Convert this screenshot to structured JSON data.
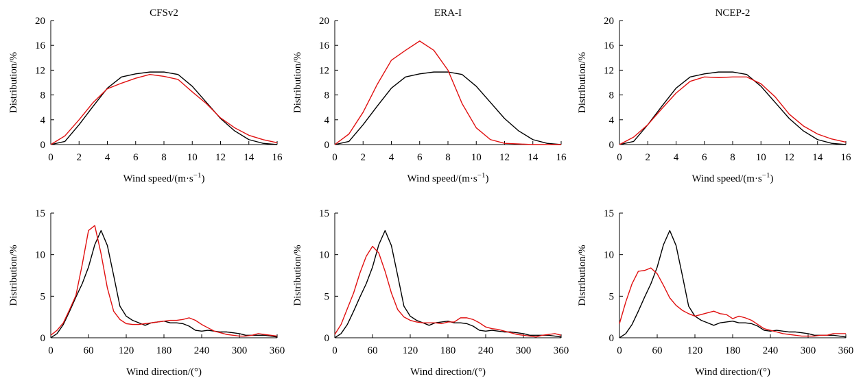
{
  "chart_data": [
    {
      "type": "line",
      "title": "CFSv2",
      "xlabel": "Wind speed/(m·s",
      "xlabel_sup": "−1",
      "xlabel_tail": ")",
      "ylabel": "Distribution/%",
      "xlim": [
        0,
        16
      ],
      "ylim": [
        0,
        20
      ],
      "xticks": [
        0,
        2,
        4,
        6,
        8,
        10,
        12,
        14,
        16
      ],
      "yticks": [
        0,
        4,
        8,
        12,
        16,
        20
      ],
      "series": [
        {
          "color": "#000000",
          "x": [
            0,
            1,
            2,
            3,
            4,
            5,
            6,
            7,
            8,
            9,
            10,
            11,
            12,
            13,
            14,
            15,
            16
          ],
          "y": [
            0,
            0.5,
            3.2,
            6.2,
            9.1,
            10.9,
            11.4,
            11.7,
            11.7,
            11.3,
            9.4,
            6.8,
            4.2,
            2.2,
            0.8,
            0.2,
            0
          ]
        },
        {
          "color": "#e01010",
          "x": [
            0,
            1,
            2,
            3,
            4,
            5,
            6,
            7,
            8,
            9,
            10,
            11,
            12,
            13,
            14,
            15,
            16
          ],
          "y": [
            0,
            1.4,
            4,
            6.8,
            9,
            9.9,
            10.7,
            11.3,
            11,
            10.5,
            8.5,
            6.6,
            4.3,
            2.7,
            1.5,
            0.8,
            0.3
          ]
        }
      ]
    },
    {
      "type": "line",
      "title": "ERA-I",
      "xlabel": "Wind speed/(m·s",
      "xlabel_sup": "−1",
      "xlabel_tail": ")",
      "ylabel": "Distribution/%",
      "xlim": [
        0,
        16
      ],
      "ylim": [
        0,
        20
      ],
      "xticks": [
        0,
        2,
        4,
        6,
        8,
        10,
        12,
        14,
        16
      ],
      "yticks": [
        0,
        4,
        8,
        12,
        16,
        20
      ],
      "series": [
        {
          "color": "#000000",
          "x": [
            0,
            1,
            2,
            3,
            4,
            5,
            6,
            7,
            8,
            9,
            10,
            11,
            12,
            13,
            14,
            15,
            16
          ],
          "y": [
            0,
            0.5,
            3.2,
            6.2,
            9.1,
            10.9,
            11.4,
            11.7,
            11.7,
            11.3,
            9.4,
            6.8,
            4.2,
            2.2,
            0.8,
            0.2,
            0
          ]
        },
        {
          "color": "#e01010",
          "x": [
            0,
            1,
            2,
            3,
            4,
            5,
            6,
            7,
            8,
            9,
            10,
            11,
            12,
            13,
            14,
            15,
            16
          ],
          "y": [
            0,
            1.7,
            5.2,
            9.7,
            13.6,
            15.2,
            16.7,
            15.2,
            12,
            6.6,
            2.7,
            0.8,
            0.2,
            0.1,
            0,
            0,
            0
          ]
        }
      ]
    },
    {
      "type": "line",
      "title": "NCEP-2",
      "xlabel": "Wind speed/(m·s",
      "xlabel_sup": "−1",
      "xlabel_tail": ")",
      "ylabel": "Distribution/%",
      "xlim": [
        0,
        16
      ],
      "ylim": [
        0,
        20
      ],
      "xticks": [
        0,
        2,
        4,
        6,
        8,
        10,
        12,
        14,
        16
      ],
      "yticks": [
        0,
        4,
        8,
        12,
        16,
        20
      ],
      "series": [
        {
          "color": "#000000",
          "x": [
            0,
            1,
            2,
            3,
            4,
            5,
            6,
            7,
            8,
            9,
            10,
            11,
            12,
            13,
            14,
            15,
            16
          ],
          "y": [
            0,
            0.5,
            3.2,
            6.2,
            9.1,
            10.9,
            11.4,
            11.7,
            11.7,
            11.3,
            9.4,
            6.8,
            4.2,
            2.2,
            0.8,
            0.2,
            0
          ]
        },
        {
          "color": "#e01010",
          "x": [
            0,
            1,
            2,
            3,
            4,
            5,
            6,
            7,
            8,
            9,
            10,
            11,
            12,
            13,
            14,
            15,
            16
          ],
          "y": [
            0,
            1.2,
            3.2,
            5.8,
            8.3,
            10.2,
            10.9,
            10.8,
            10.9,
            10.9,
            9.8,
            7.7,
            4.9,
            3,
            1.7,
            0.9,
            0.4
          ]
        }
      ]
    },
    {
      "type": "line",
      "title": "",
      "xlabel": "Wind direction/(°)",
      "ylabel": "Distribution/%",
      "xlim": [
        0,
        360
      ],
      "ylim": [
        0,
        15
      ],
      "xticks": [
        0,
        60,
        120,
        180,
        240,
        300,
        360
      ],
      "yticks": [
        0,
        5,
        10,
        15
      ],
      "series": [
        {
          "color": "#000000",
          "x": [
            0,
            10,
            20,
            30,
            40,
            50,
            60,
            70,
            80,
            90,
            100,
            110,
            120,
            130,
            140,
            150,
            160,
            170,
            180,
            190,
            200,
            210,
            220,
            230,
            240,
            250,
            260,
            270,
            280,
            290,
            300,
            310,
            320,
            330,
            340,
            350,
            360
          ],
          "y": [
            0,
            0.5,
            1.6,
            3.2,
            4.9,
            6.5,
            8.5,
            11.2,
            12.9,
            11.1,
            7.5,
            3.8,
            2.6,
            2.1,
            1.8,
            1.5,
            1.8,
            1.9,
            2,
            1.8,
            1.8,
            1.7,
            1.4,
            0.9,
            0.8,
            0.9,
            0.8,
            0.7,
            0.7,
            0.6,
            0.5,
            0.3,
            0.3,
            0.3,
            0.3,
            0.2,
            0.1
          ]
        },
        {
          "color": "#e01010",
          "x": [
            0,
            10,
            20,
            30,
            40,
            50,
            60,
            70,
            80,
            90,
            100,
            110,
            120,
            130,
            140,
            150,
            160,
            170,
            180,
            190,
            200,
            210,
            220,
            230,
            240,
            250,
            260,
            270,
            280,
            290,
            300,
            310,
            320,
            330,
            340,
            350,
            360
          ],
          "y": [
            0.3,
            0.9,
            1.8,
            3.4,
            5.1,
            8.8,
            12.9,
            13.5,
            10.1,
            6,
            3.2,
            2.2,
            1.7,
            1.6,
            1.6,
            1.7,
            1.8,
            1.9,
            2,
            2.1,
            2.1,
            2.2,
            2.4,
            2.1,
            1.6,
            1.2,
            0.8,
            0.6,
            0.4,
            0.3,
            0.2,
            0.2,
            0.3,
            0.5,
            0.4,
            0.3,
            0.2
          ]
        }
      ]
    },
    {
      "type": "line",
      "title": "",
      "xlabel": "Wind direction/(°)",
      "ylabel": "Distribution/%",
      "xlim": [
        0,
        360
      ],
      "ylim": [
        0,
        15
      ],
      "xticks": [
        0,
        60,
        120,
        180,
        240,
        300,
        360
      ],
      "yticks": [
        0,
        5,
        10,
        15
      ],
      "series": [
        {
          "color": "#000000",
          "x": [
            0,
            10,
            20,
            30,
            40,
            50,
            60,
            70,
            80,
            90,
            100,
            110,
            120,
            130,
            140,
            150,
            160,
            170,
            180,
            190,
            200,
            210,
            220,
            230,
            240,
            250,
            260,
            270,
            280,
            290,
            300,
            310,
            320,
            330,
            340,
            350,
            360
          ],
          "y": [
            0,
            0.5,
            1.6,
            3.2,
            4.9,
            6.5,
            8.5,
            11.2,
            12.9,
            11.1,
            7.5,
            3.8,
            2.6,
            2.1,
            1.8,
            1.5,
            1.8,
            1.9,
            2,
            1.8,
            1.8,
            1.7,
            1.4,
            0.9,
            0.8,
            0.9,
            0.8,
            0.7,
            0.7,
            0.6,
            0.5,
            0.3,
            0.3,
            0.3,
            0.3,
            0.2,
            0.1
          ]
        },
        {
          "color": "#e01010",
          "x": [
            0,
            10,
            20,
            30,
            40,
            50,
            60,
            70,
            80,
            90,
            100,
            110,
            120,
            130,
            140,
            150,
            160,
            170,
            180,
            190,
            200,
            210,
            220,
            230,
            240,
            250,
            260,
            270,
            280,
            290,
            300,
            310,
            320,
            330,
            340,
            350,
            360
          ],
          "y": [
            0.4,
            1.6,
            3.5,
            5.4,
            7.8,
            9.8,
            11,
            10.2,
            8,
            5.4,
            3.4,
            2.5,
            2.1,
            1.9,
            1.8,
            1.8,
            1.8,
            1.7,
            1.9,
            1.9,
            2.4,
            2.4,
            2.2,
            1.8,
            1.3,
            1.1,
            1,
            0.8,
            0.6,
            0.4,
            0.3,
            0.2,
            0.1,
            0.3,
            0.4,
            0.5,
            0.3
          ]
        }
      ]
    },
    {
      "type": "line",
      "title": "",
      "xlabel": "Wind direction/(°)",
      "ylabel": "Distribution/%",
      "xlim": [
        0,
        360
      ],
      "ylim": [
        0,
        15
      ],
      "xticks": [
        0,
        60,
        120,
        180,
        240,
        300,
        360
      ],
      "yticks": [
        0,
        5,
        10,
        15
      ],
      "series": [
        {
          "color": "#000000",
          "x": [
            0,
            10,
            20,
            30,
            40,
            50,
            60,
            70,
            80,
            90,
            100,
            110,
            120,
            130,
            140,
            150,
            160,
            170,
            180,
            190,
            200,
            210,
            220,
            230,
            240,
            250,
            260,
            270,
            280,
            290,
            300,
            310,
            320,
            330,
            340,
            350,
            360
          ],
          "y": [
            0,
            0.5,
            1.6,
            3.2,
            4.9,
            6.5,
            8.5,
            11.2,
            12.9,
            11.1,
            7.5,
            3.8,
            2.6,
            2.1,
            1.8,
            1.5,
            1.8,
            1.9,
            2,
            1.8,
            1.8,
            1.7,
            1.4,
            0.9,
            0.8,
            0.9,
            0.8,
            0.7,
            0.7,
            0.6,
            0.5,
            0.3,
            0.3,
            0.3,
            0.3,
            0.2,
            0.1
          ]
        },
        {
          "color": "#e01010",
          "x": [
            0,
            10,
            20,
            30,
            40,
            50,
            60,
            70,
            80,
            90,
            100,
            110,
            120,
            130,
            140,
            150,
            160,
            170,
            180,
            190,
            200,
            210,
            220,
            230,
            240,
            250,
            260,
            270,
            280,
            290,
            300,
            310,
            320,
            330,
            340,
            350,
            360
          ],
          "y": [
            1.7,
            4.3,
            6.5,
            8,
            8.1,
            8.4,
            7.7,
            6.3,
            4.8,
            3.9,
            3.3,
            2.9,
            2.6,
            2.8,
            3,
            3.2,
            2.9,
            2.8,
            2.3,
            2.6,
            2.4,
            2.1,
            1.6,
            1.1,
            0.9,
            0.7,
            0.5,
            0.4,
            0.3,
            0.2,
            0.2,
            0.2,
            0.3,
            0.3,
            0.5,
            0.5,
            0.5
          ]
        }
      ]
    }
  ]
}
